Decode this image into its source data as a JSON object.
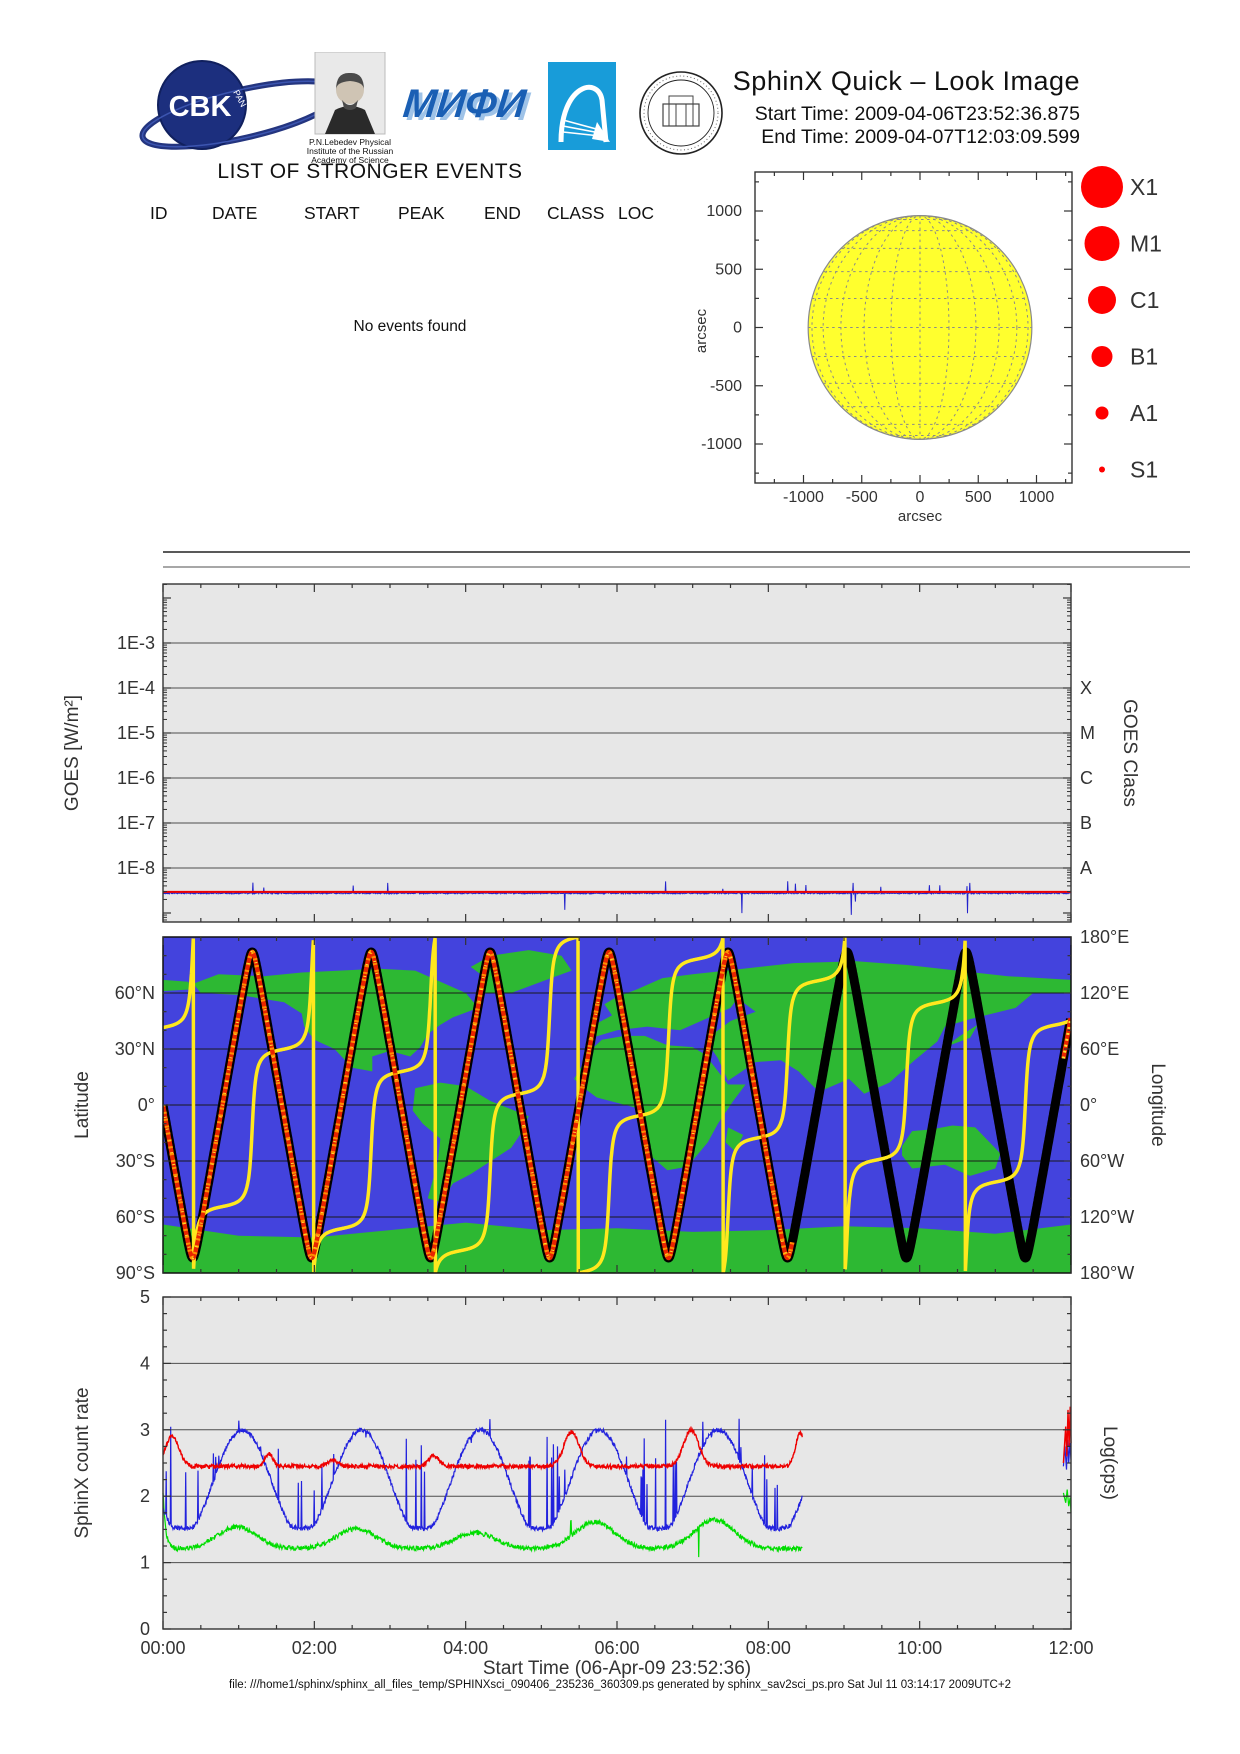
{
  "header": {
    "title": "SphinX Quick – Look Image",
    "start_time": "Start Time: 2009-04-06T23:52:36.875",
    "end_time": "End Time: 2009-04-07T12:03:09.599",
    "logos": {
      "cbk": "CBK",
      "cbk_sub": "PAN",
      "lebedev_caption": [
        "P.N.Lebedev Physical",
        "Institute of the Russian",
        "Academy of Science"
      ],
      "mephi": "МИФИ"
    }
  },
  "events": {
    "heading": "LIST OF STRONGER EVENTS",
    "columns": [
      "ID",
      "DATE",
      "START",
      "PEAK",
      "END",
      "CLASS",
      "LOC"
    ],
    "empty_message": "No events found"
  },
  "sun_plot": {
    "axis_label": "arcsec",
    "tick_values": [
      -1000,
      -500,
      0,
      500,
      1000
    ],
    "disk_radius_arcsec": 960,
    "disk_color": "#ffff2e",
    "grid_color": "#8a8a8a",
    "grid_step_deg": 15,
    "flare_legend": {
      "color": "#ff0000",
      "entries": [
        {
          "label": "X1",
          "r": 21
        },
        {
          "label": "M1",
          "r": 17.5
        },
        {
          "label": "C1",
          "r": 14
        },
        {
          "label": "B1",
          "r": 10.5
        },
        {
          "label": "A1",
          "r": 6.5
        },
        {
          "label": "S1",
          "r": 3
        }
      ]
    }
  },
  "chart_data": [
    {
      "id": "goes_flux",
      "type": "line",
      "ylabel": "GOES [W/m²]",
      "y2label": "GOES Class",
      "x_range_hours": [
        0,
        12
      ],
      "y_decade_labels": [
        "1E-3",
        "1E-4",
        "1E-5",
        "1E-6",
        "1E-7",
        "1E-8"
      ],
      "y_decade_values": [
        -3,
        -4,
        -5,
        -6,
        -7,
        -8
      ],
      "y2_class_labels": [
        "X",
        "M",
        "C",
        "B",
        "A"
      ],
      "grid": true,
      "series": [
        {
          "name": "goes_short_channel",
          "color": "#2222cc",
          "baseline_log10_wm2": -8.56,
          "noise_log10": 0.015,
          "spikes": "frequent small upward, rare downward"
        },
        {
          "name": "goes_long_channel",
          "color": "#ee0000",
          "baseline_log10_wm2": -8.53,
          "noise_log10": 0.004,
          "spikes": "none"
        }
      ]
    },
    {
      "id": "orbit_ground_track",
      "type": "line",
      "ylabel": "Latitude",
      "y2label": "Longitude",
      "lat_tick_labels": [
        "60°N",
        "30°N",
        "0°",
        "30°S",
        "60°S",
        "90°S"
      ],
      "lat_tick_values": [
        60,
        30,
        0,
        -30,
        -60,
        -90
      ],
      "lon_tick_labels": [
        "180°E",
        "120°E",
        "60°E",
        "0°",
        "60°W",
        "120°W",
        "180°W"
      ],
      "lon_tick_values": [
        180,
        120,
        60,
        0,
        -60,
        -120,
        -180
      ],
      "orbit": {
        "period_h": 1.572,
        "inclination_deg": 82,
        "descending_node_t_h": 0,
        "lon_at_start_deg_e": 83,
        "earth_rotation_deg_per_h": 15.04,
        "track_with_data_end_h": 8.32,
        "track_resume_h": 11.9,
        "track_drawn_end_h": 12.0
      },
      "colors": {
        "ocean": "#4343dd",
        "land": "#2db833",
        "grid": "#1a1a1a",
        "track_outline": "#000000",
        "track_data_core": "#e82400",
        "track_core_speckle": "#ff9000",
        "track_core_hot": "#ffe12e",
        "longitude_line": "#ffe81e"
      },
      "continents": {
        "antarctica": [
          [
            -180,
            -64
          ],
          [
            -150,
            -70
          ],
          [
            -120,
            -71
          ],
          [
            -90,
            -67
          ],
          [
            -60,
            -63
          ],
          [
            -30,
            -67
          ],
          [
            0,
            -66
          ],
          [
            30,
            -68
          ],
          [
            60,
            -67
          ],
          [
            90,
            -65
          ],
          [
            120,
            -66
          ],
          [
            150,
            -69
          ],
          [
            180,
            -64
          ],
          [
            180,
            -90
          ],
          [
            -180,
            -90
          ]
        ],
        "north_america": [
          [
            -168,
            65
          ],
          [
            -158,
            70
          ],
          [
            -140,
            69
          ],
          [
            -125,
            71
          ],
          [
            -110,
            72
          ],
          [
            -95,
            73
          ],
          [
            -80,
            72
          ],
          [
            -70,
            66
          ],
          [
            -60,
            60
          ],
          [
            -55,
            52
          ],
          [
            -65,
            47
          ],
          [
            -70,
            43
          ],
          [
            -75,
            38
          ],
          [
            -78,
            31
          ],
          [
            -82,
            26
          ],
          [
            -90,
            29
          ],
          [
            -97,
            26
          ],
          [
            -97,
            18
          ],
          [
            -105,
            20
          ],
          [
            -112,
            30
          ],
          [
            -120,
            35
          ],
          [
            -124,
            42
          ],
          [
            -125,
            49
          ],
          [
            -132,
            55
          ],
          [
            -150,
            59
          ],
          [
            -165,
            60
          ]
        ],
        "greenland": [
          [
            -55,
            60
          ],
          [
            -52,
            68
          ],
          [
            -58,
            74
          ],
          [
            -50,
            80
          ],
          [
            -35,
            83
          ],
          [
            -22,
            80
          ],
          [
            -18,
            72
          ],
          [
            -30,
            66
          ],
          [
            -42,
            60
          ]
        ],
        "south_america": [
          [
            -80,
            9
          ],
          [
            -70,
            12
          ],
          [
            -60,
            10
          ],
          [
            -50,
            2
          ],
          [
            -35,
            -6
          ],
          [
            -38,
            -15
          ],
          [
            -42,
            -23
          ],
          [
            -50,
            -30
          ],
          [
            -58,
            -37
          ],
          [
            -65,
            -42
          ],
          [
            -70,
            -52
          ],
          [
            -75,
            -50
          ],
          [
            -73,
            -40
          ],
          [
            -71,
            -30
          ],
          [
            -70,
            -18
          ],
          [
            -77,
            -10
          ],
          [
            -81,
            -3
          ]
        ],
        "africa": [
          [
            -17,
            14
          ],
          [
            -10,
            30
          ],
          [
            -6,
            35
          ],
          [
            3,
            37
          ],
          [
            11,
            37
          ],
          [
            20,
            32
          ],
          [
            30,
            31
          ],
          [
            35,
            27
          ],
          [
            44,
            11
          ],
          [
            51,
            11
          ],
          [
            46,
            2
          ],
          [
            40,
            -10
          ],
          [
            36,
            -20
          ],
          [
            28,
            -33
          ],
          [
            20,
            -35
          ],
          [
            14,
            -28
          ],
          [
            12,
            -18
          ],
          [
            9,
            -2
          ],
          [
            -8,
            4
          ],
          [
            -14,
            10
          ]
        ],
        "europe": [
          [
            -10,
            36
          ],
          [
            -9,
            43
          ],
          [
            -2,
            48
          ],
          [
            -5,
            54
          ],
          [
            0,
            58
          ],
          [
            8,
            62
          ],
          [
            18,
            68
          ],
          [
            30,
            70
          ],
          [
            42,
            67
          ],
          [
            50,
            61
          ],
          [
            45,
            52
          ],
          [
            35,
            46
          ],
          [
            25,
            40
          ],
          [
            12,
            42
          ],
          [
            0,
            40
          ]
        ],
        "asia": [
          [
            30,
            70
          ],
          [
            50,
            73
          ],
          [
            70,
            76
          ],
          [
            95,
            77
          ],
          [
            115,
            75
          ],
          [
            135,
            72
          ],
          [
            155,
            69
          ],
          [
            180,
            67
          ],
          [
            180,
            60
          ],
          [
            165,
            60
          ],
          [
            158,
            52
          ],
          [
            140,
            46
          ],
          [
            130,
            42
          ],
          [
            127,
            34
          ],
          [
            118,
            24
          ],
          [
            108,
            12
          ],
          [
            98,
            6
          ],
          [
            92,
            14
          ],
          [
            80,
            7
          ],
          [
            72,
            18
          ],
          [
            65,
            24
          ],
          [
            55,
            23
          ],
          [
            44,
            13
          ],
          [
            40,
            25
          ],
          [
            35,
            35
          ],
          [
            45,
            45
          ],
          [
            55,
            50
          ],
          [
            45,
            60
          ],
          [
            35,
            65
          ]
        ],
        "australia": [
          [
            113,
            -22
          ],
          [
            117,
            -14
          ],
          [
            125,
            -13
          ],
          [
            133,
            -11
          ],
          [
            142,
            -12
          ],
          [
            147,
            -19
          ],
          [
            152,
            -26
          ],
          [
            150,
            -34
          ],
          [
            140,
            -38
          ],
          [
            130,
            -32
          ],
          [
            117,
            -34
          ],
          [
            113,
            -27
          ]
        ],
        "chukotka": [
          [
            -180,
            67
          ],
          [
            -170,
            66
          ],
          [
            -168,
            62
          ],
          [
            -180,
            61
          ]
        ],
        "japan": [
          [
            130,
            31
          ],
          [
            140,
            36
          ],
          [
            143,
            43
          ],
          [
            136,
            37
          ]
        ],
        "madagascar": [
          [
            44,
            -12
          ],
          [
            50,
            -16
          ],
          [
            47,
            -25
          ],
          [
            43,
            -20
          ]
        ]
      }
    },
    {
      "id": "sphinx_count_rate",
      "type": "line",
      "ylabel": "SphinX count rate",
      "y2label": "Log(cps)",
      "xlabel": "Start Time (06-Apr-09 23:52:36)",
      "x_tick_labels": [
        "00:00",
        "02:00",
        "04:00",
        "06:00",
        "08:00",
        "10:00",
        "12:00"
      ],
      "x_tick_hours": [
        0,
        2,
        4,
        6,
        8,
        10,
        12
      ],
      "y_ticks": [
        0,
        1,
        2,
        3,
        4,
        5
      ],
      "ylim": [
        0,
        5
      ],
      "grid": true,
      "data_end_h": 8.45,
      "series": [
        {
          "name": "green_channel",
          "color": "#00dd00",
          "base": 1.21,
          "start_spike_peak": 2.05,
          "humps_t_h": [
            0.98,
            2.55,
            4.13,
            5.71,
            7.29
          ],
          "humps_amp": [
            0.33,
            0.3,
            0.24,
            0.4,
            0.44
          ],
          "hump_sigma_h": 0.26,
          "anchors_t_h": [
            0,
            0.5,
            1,
            1.5,
            2,
            2.5,
            3,
            3.5,
            4,
            4.5,
            5,
            5.5,
            6,
            6.5,
            7,
            7.5,
            8,
            8.45
          ],
          "anchors_log_cps": [
            2.0,
            1.27,
            1.53,
            1.33,
            1.26,
            1.5,
            1.3,
            1.24,
            1.44,
            1.33,
            1.26,
            1.57,
            1.38,
            1.28,
            1.42,
            1.62,
            1.38,
            1.28
          ]
        },
        {
          "name": "blue_channel",
          "color": "#2222dd",
          "base": 2.2,
          "amp": 0.8,
          "arc_peak_t_h": 1.05,
          "period_h": 1.572,
          "floor": 1.55,
          "spike_top": 3.25,
          "anchors_t_h": [
            0,
            0.5,
            1,
            1.5,
            2,
            2.5,
            3,
            3.5,
            4,
            4.5,
            5,
            5.5,
            6,
            6.5,
            7,
            7.5,
            8,
            8.45
          ],
          "anchors_log_cps": [
            1.81,
            1.73,
            2.98,
            2.02,
            1.56,
            2.91,
            2.25,
            1.53,
            2.77,
            2.47,
            1.52,
            2.59,
            2.67,
            1.52,
            2.38,
            2.84,
            1.55,
            1.99
          ]
        },
        {
          "name": "red_channel",
          "color": "#ee0000",
          "base": 2.45,
          "humps_t_amp_sigma": [
            [
              0.12,
              0.45,
              0.09
            ],
            [
              1.4,
              0.2,
              0.05
            ],
            [
              2.25,
              0.1,
              0.06
            ],
            [
              3.58,
              0.16,
              0.07
            ],
            [
              5.4,
              0.52,
              0.1
            ],
            [
              6.98,
              0.55,
              0.1
            ],
            [
              8.42,
              0.5,
              0.06
            ]
          ],
          "anchors_t_h": [
            0,
            0.5,
            1,
            1.5,
            2,
            2.5,
            3,
            3.5,
            4,
            4.5,
            5,
            5.5,
            6,
            6.5,
            7,
            7.5,
            8,
            8.45
          ],
          "anchors_log_cps": [
            2.63,
            2.45,
            2.45,
            2.57,
            2.47,
            2.55,
            2.45,
            2.6,
            2.46,
            2.45,
            2.47,
            2.96,
            2.49,
            2.51,
            3.0,
            2.51,
            2.46,
            2.93
          ]
        }
      ],
      "end_burst": {
        "t_range_h": [
          11.9,
          12.0
        ],
        "red_log_cps": [
          [
            11.9,
            2.5
          ],
          [
            11.93,
            3.05
          ],
          [
            11.945,
            2.6
          ],
          [
            11.96,
            3.3
          ],
          [
            11.975,
            2.75
          ],
          [
            11.99,
            3.35
          ],
          [
            12.0,
            2.8
          ]
        ],
        "blue_log_cps": [
          [
            11.9,
            2.45
          ],
          [
            11.92,
            2.75
          ],
          [
            11.94,
            2.4
          ],
          [
            11.955,
            2.85
          ],
          [
            11.97,
            2.5
          ],
          [
            11.985,
            2.8
          ],
          [
            12.0,
            2.55
          ]
        ],
        "green_log_cps": [
          [
            11.9,
            2.05
          ],
          [
            11.93,
            1.9
          ],
          [
            11.95,
            2.1
          ],
          [
            11.97,
            1.85
          ],
          [
            11.99,
            1.98
          ],
          [
            12.0,
            1.75
          ]
        ]
      }
    }
  ],
  "footer": {
    "text": "file: ///home1/sphinx/sphinx_all_files_temp/SPHINXsci_090406_235236_360309.ps generated by sphinx_sav2sci_ps.pro Sat Jul 11 03:14:17 2009UTC+2"
  }
}
